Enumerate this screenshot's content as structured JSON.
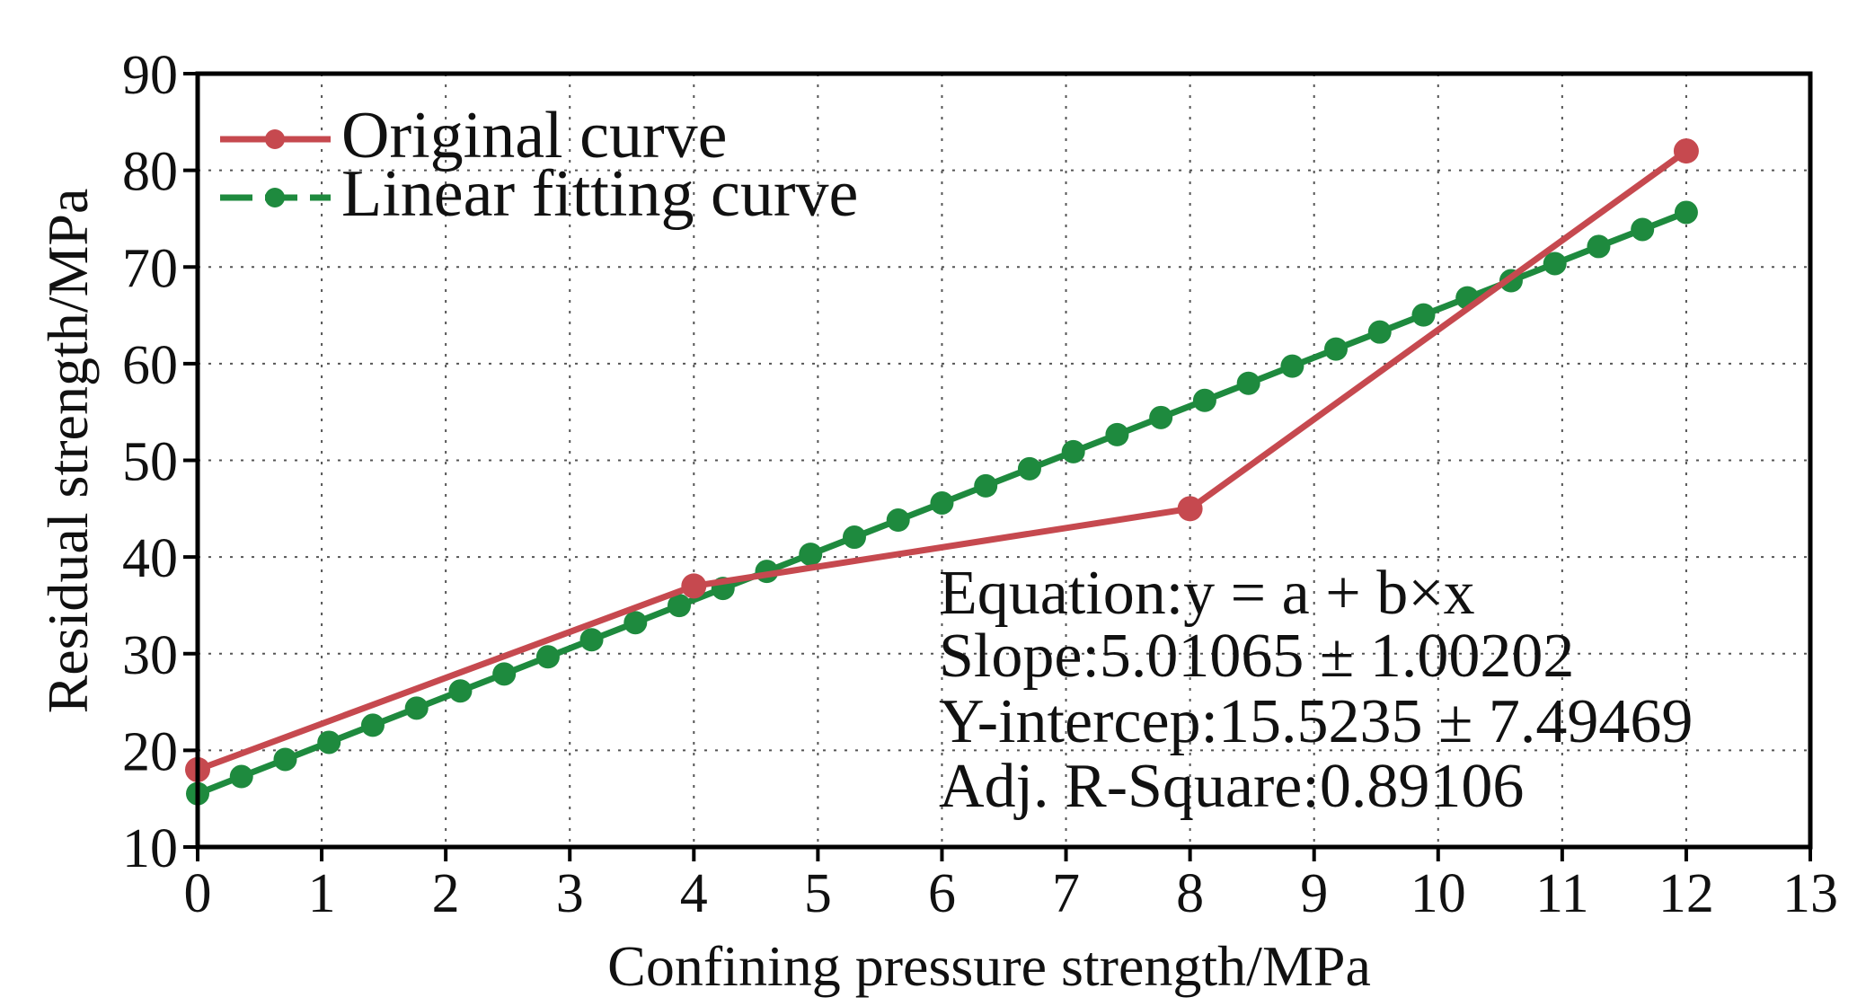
{
  "chart_data": {
    "type": "line",
    "title": "",
    "xlabel": "Confining pressure strength/MPa",
    "ylabel": "Residual strength/MPa",
    "xlim": [
      0,
      13
    ],
    "ylim": [
      10,
      90
    ],
    "xticks": [
      0,
      1,
      2,
      3,
      4,
      5,
      6,
      7,
      8,
      9,
      10,
      11,
      12,
      13
    ],
    "yticks": [
      10,
      20,
      30,
      40,
      50,
      60,
      70,
      80,
      90
    ],
    "grid": true,
    "legend_position": "top-left",
    "series": [
      {
        "name": "Original curve",
        "color": "#c6494f",
        "marker": "circle",
        "x": [
          0,
          4,
          8,
          12
        ],
        "y": [
          18,
          37,
          45,
          82
        ]
      },
      {
        "name": "Linear fitting curve",
        "color": "#1e8a3e",
        "marker": "circle",
        "line_style": "dashed",
        "fit": {
          "intercept": 15.5235,
          "slope": 5.01065
        },
        "x": [
          0,
          0.353,
          0.706,
          1.059,
          1.412,
          1.765,
          2.118,
          2.471,
          2.824,
          3.176,
          3.529,
          3.882,
          4.235,
          4.588,
          4.941,
          5.294,
          5.647,
          6.0,
          6.353,
          6.706,
          7.059,
          7.412,
          7.765,
          8.118,
          8.471,
          8.824,
          9.176,
          9.529,
          9.882,
          10.235,
          10.588,
          10.941,
          11.294,
          11.647,
          12.0
        ],
        "y": [
          15.52,
          17.29,
          19.06,
          20.83,
          22.6,
          24.37,
          26.14,
          27.9,
          29.67,
          31.44,
          33.21,
          34.98,
          36.75,
          38.51,
          40.28,
          42.05,
          43.82,
          45.59,
          47.36,
          49.13,
          50.89,
          52.66,
          54.43,
          56.2,
          57.97,
          59.74,
          61.51,
          63.27,
          65.04,
          66.81,
          68.58,
          70.35,
          72.12,
          73.88,
          75.65
        ]
      }
    ],
    "annotations": [
      "Equation:y = a + b×x",
      "Slope:5.01065 ± 1.00202",
      "Y-intercep:15.5235 ± 7.49469",
      "Adj. R-Square:0.89106"
    ]
  }
}
